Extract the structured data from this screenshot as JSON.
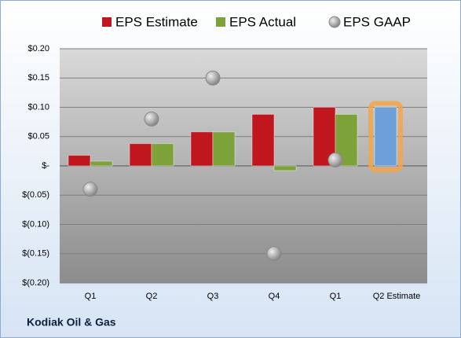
{
  "chart_data": {
    "type": "bar",
    "title": "Kodiak Oil & Gas",
    "categories": [
      "Q1",
      "Q2",
      "Q3",
      "Q4",
      "Q1",
      "Q2 Estimate"
    ],
    "series": [
      {
        "name": "EPS Estimate",
        "color": "#c0161e",
        "colors": [
          "#c0161e",
          "#c0161e",
          "#c0161e",
          "#c0161e",
          "#c0161e",
          "#6f9fd8"
        ],
        "values": [
          0.018,
          0.038,
          0.058,
          0.088,
          0.1,
          0.1
        ]
      },
      {
        "name": "EPS Actual",
        "color": "#7da23a",
        "values": [
          0.008,
          0.038,
          0.058,
          -0.008,
          0.088,
          null
        ]
      },
      {
        "name": "EPS GAAP",
        "color": "#a6a6a6",
        "marker": "circle",
        "values": [
          -0.04,
          0.08,
          0.15,
          -0.15,
          0.01,
          null
        ]
      }
    ],
    "ylim": [
      -0.2,
      0.2
    ],
    "yticks": [
      {
        "value": -0.2,
        "label": "$(0.20)"
      },
      {
        "value": -0.15,
        "label": "$(0.15)"
      },
      {
        "value": -0.1,
        "label": "$(0.10)"
      },
      {
        "value": -0.05,
        "label": "$(0.05)"
      },
      {
        "value": 0,
        "label": "$-"
      },
      {
        "value": 0.05,
        "label": "$0.05"
      },
      {
        "value": 0.1,
        "label": "$0.10"
      },
      {
        "value": 0.15,
        "label": "$0.15"
      },
      {
        "value": 0.2,
        "label": "$0.20"
      }
    ],
    "grid": true,
    "legend": "top"
  }
}
